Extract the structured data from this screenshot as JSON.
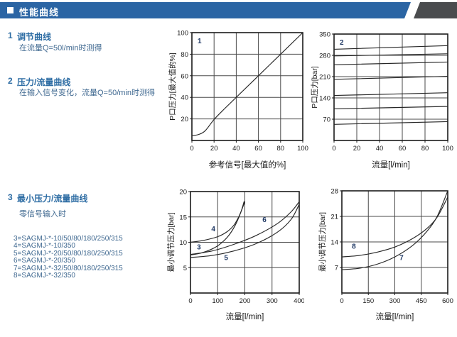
{
  "header": {
    "title": "性能曲线"
  },
  "sections": [
    {
      "num": "1",
      "title": "调节曲线",
      "body": "在流量Q=50l/min时测得"
    },
    {
      "num": "2",
      "title": "压力/流量曲线",
      "body": "在输入信号变化，流量Q=50/min时测得"
    },
    {
      "num": "3",
      "title": "最小压力/流量曲线",
      "body": "零信号输入时"
    }
  ],
  "model_list": [
    "3=SAGMJ-*-10/50/80/180/250/315",
    "4=SAGMJ-*-10/350",
    "5=SAGMJ-*-20/50/80/180/250/315",
    "6=SAGMJ-*-20/350",
    "7=SAGMJ-*-32/50/80/180/250/315",
    "8=SAGMJ-*-32/350"
  ],
  "colors": {
    "header_bar": "#2b65a4",
    "header_slash_dark": "#4a4c4e",
    "section_title_blue": "#2e6da4",
    "body_text_blue": "#3f6890",
    "grid_line": "#4a4a4a",
    "axis_border": "#1a1a1a",
    "curve": "#262626",
    "curve_label": "#1f3864"
  },
  "chart_data": [
    {
      "id": "adjustment-curve",
      "type": "line",
      "corner_label": "1",
      "xlabel": "参考信号[最大值的%]",
      "ylabel": "P口压力[最大值的%]",
      "xlim": [
        0,
        100
      ],
      "ylim": [
        0,
        100
      ],
      "xticks": [
        0,
        20,
        40,
        60,
        80,
        100
      ],
      "yticks": [
        20,
        40,
        60,
        80,
        100
      ],
      "grid": true,
      "series": [
        {
          "name": "1",
          "points": [
            [
              0,
              4.5
            ],
            [
              6,
              5.5
            ],
            [
              12,
              9
            ],
            [
              20,
              19.5
            ],
            [
              30,
              30
            ],
            [
              60,
              60
            ],
            [
              100,
              100
            ]
          ]
        }
      ],
      "labels": []
    },
    {
      "id": "pressure-flow-curve",
      "type": "line",
      "corner_label": "2",
      "xlabel": "流量[l/min]",
      "ylabel": "P口压力[bar]",
      "xlim": [
        0,
        100
      ],
      "ylim": [
        0,
        350
      ],
      "xticks": [
        0,
        20,
        40,
        60,
        80,
        100
      ],
      "yticks": [
        70,
        140,
        210,
        280,
        350
      ],
      "grid": true,
      "series": [
        {
          "name": "setting-315bar",
          "points": [
            [
              0,
              300
            ],
            [
              100,
              312
            ]
          ]
        },
        {
          "name": "setting-280bar",
          "points": [
            [
              0,
              278
            ],
            [
              100,
              285
            ]
          ]
        },
        {
          "name": "setting-250bar",
          "points": [
            [
              0,
              249
            ],
            [
              100,
              258
            ]
          ]
        },
        {
          "name": "setting-200bar",
          "points": [
            [
              0,
              201
            ],
            [
              100,
              211
            ]
          ]
        },
        {
          "name": "setting-150bar",
          "points": [
            [
              0,
              148
            ],
            [
              100,
              157
            ]
          ]
        },
        {
          "name": "setting-105bar",
          "points": [
            [
              0,
              104
            ],
            [
              100,
              112
            ]
          ]
        },
        {
          "name": "setting-55bar",
          "points": [
            [
              0,
              53
            ],
            [
              100,
              62
            ]
          ]
        }
      ],
      "labels": []
    },
    {
      "id": "min-pressure-flow-ng10-ng20",
      "type": "line",
      "corner_label": "",
      "xlabel": "流量[l/min]",
      "ylabel": "最小调节压力[bar]",
      "xlim": [
        0,
        400
      ],
      "ylim": [
        0,
        20
      ],
      "xticks": [
        0,
        100,
        200,
        300,
        400
      ],
      "yticks": [
        5,
        10,
        15,
        20
      ],
      "grid": true,
      "series": [
        {
          "name": "3",
          "points": [
            [
              0,
              7.5
            ],
            [
              40,
              7.9
            ],
            [
              80,
              8.7
            ],
            [
              110,
              9.7
            ],
            [
              140,
              11.3
            ],
            [
              165,
              13.4
            ],
            [
              185,
              15.9
            ],
            [
              197,
              18
            ]
          ]
        },
        {
          "name": "4",
          "points": [
            [
              0,
              10
            ],
            [
              50,
              10.4
            ],
            [
              100,
              11.1
            ],
            [
              135,
              12.1
            ],
            [
              160,
              13.4
            ],
            [
              180,
              15.3
            ],
            [
              200,
              18
            ]
          ]
        },
        {
          "name": "5",
          "points": [
            [
              0,
              7
            ],
            [
              80,
              7.4
            ],
            [
              160,
              8.3
            ],
            [
              240,
              9.7
            ],
            [
              320,
              12
            ],
            [
              370,
              14.5
            ],
            [
              400,
              17.5
            ]
          ]
        },
        {
          "name": "6",
          "points": [
            [
              0,
              7.6
            ],
            [
              80,
              8.3
            ],
            [
              160,
              9.6
            ],
            [
              240,
              11.3
            ],
            [
              320,
              13.7
            ],
            [
              370,
              16
            ],
            [
              400,
              18
            ]
          ]
        }
      ],
      "labels": [
        {
          "text": "3",
          "x": 31,
          "y": 8.6
        },
        {
          "text": "4",
          "x": 84,
          "y": 12.2
        },
        {
          "text": "5",
          "x": 131,
          "y": 6.5
        },
        {
          "text": "6",
          "x": 272,
          "y": 14
        }
      ]
    },
    {
      "id": "min-pressure-flow-ng32",
      "type": "line",
      "corner_label": "",
      "xlabel": "流量[l/min]",
      "ylabel": "最小调节压力[bar]",
      "xlim": [
        0,
        600
      ],
      "ylim": [
        0,
        28
      ],
      "xticks": [
        0,
        150,
        300,
        450,
        600
      ],
      "yticks": [
        7,
        14,
        21,
        28
      ],
      "grid": true,
      "series": [
        {
          "name": "7",
          "points": [
            [
              0,
              6.4
            ],
            [
              100,
              6.8
            ],
            [
              200,
              7.9
            ],
            [
              300,
              9.9
            ],
            [
              400,
              13
            ],
            [
              480,
              16.8
            ],
            [
              540,
              21
            ],
            [
              600,
              28
            ]
          ]
        },
        {
          "name": "8",
          "points": [
            [
              0,
              9.9
            ],
            [
              100,
              10.3
            ],
            [
              200,
              11.2
            ],
            [
              300,
              12.6
            ],
            [
              400,
              14.9
            ],
            [
              480,
              17.6
            ],
            [
              540,
              20.8
            ],
            [
              600,
              26.3
            ]
          ]
        }
      ],
      "labels": [
        {
          "text": "7",
          "x": 338,
          "y": 9.0
        },
        {
          "text": "8",
          "x": 68,
          "y": 12.2
        }
      ]
    }
  ]
}
